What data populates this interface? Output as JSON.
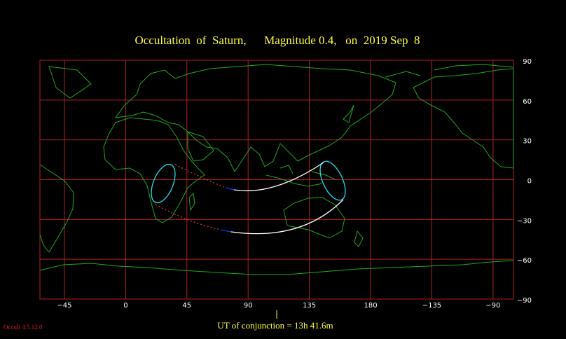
{
  "title": "Occultation  of  Saturn,      Magnitude 0.4,   on  2019 Sep  8",
  "map": {
    "xlim": [
      -63,
      -75
    ],
    "ylim": [
      -90,
      90
    ],
    "xticks": [
      {
        "value": -45,
        "label": "−45"
      },
      0,
      45,
      90,
      135,
      180,
      {
        "value": -135,
        "label": "−135"
      },
      {
        "value": -90,
        "label": "−90"
      }
    ],
    "yticks": [
      90,
      60,
      30,
      0,
      {
        "value": -30,
        "label": "−30"
      },
      {
        "value": -60,
        "label": "−60"
      },
      {
        "value": -90,
        "label": "−90"
      }
    ],
    "grid_color": "#b02020",
    "coast_color": "#1faa1f"
  },
  "conjunction": "UT of conjunction = 13h 41.6m",
  "version": "Occult 4.5.12.0"
}
